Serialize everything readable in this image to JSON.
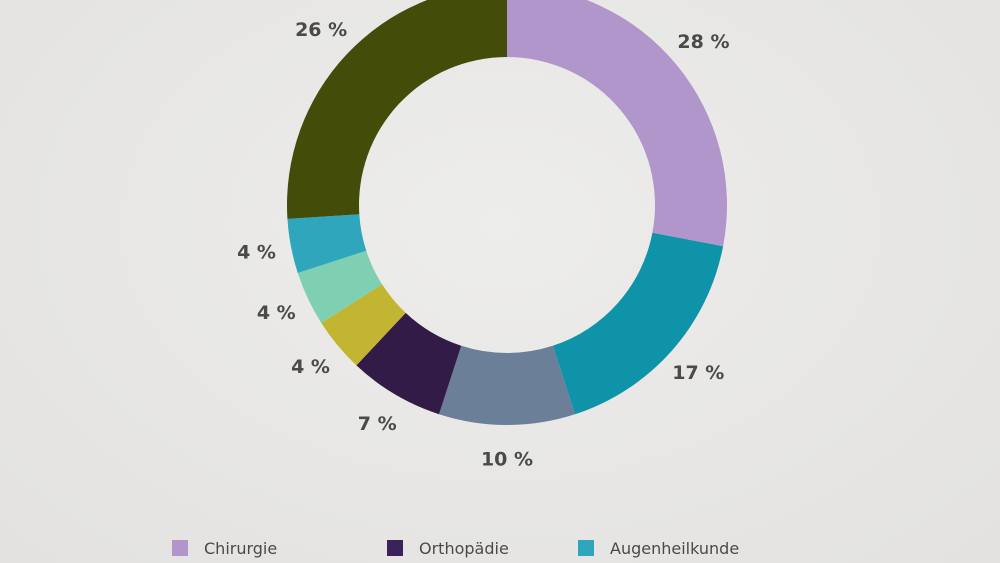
{
  "chart_data": {
    "type": "pie",
    "variant": "donut",
    "slices": [
      {
        "label": "28 %",
        "value": 28,
        "color": "#b196cb"
      },
      {
        "label": "17 %",
        "value": 17,
        "color": "#0e93a8"
      },
      {
        "label": "10 %",
        "value": 10,
        "color": "#6c7f98"
      },
      {
        "label": "7 %",
        "value": 7,
        "color": "#331b47"
      },
      {
        "label": "4 %",
        "value": 4,
        "color": "#c2b532"
      },
      {
        "label": "4 %",
        "value": 4,
        "color": "#7fd0b3"
      },
      {
        "label": "4 %",
        "value": 4,
        "color": "#30a6bd"
      },
      {
        "label": "26 %",
        "value": 26,
        "color": "#434c08"
      }
    ],
    "legend": [
      {
        "label": "Chirurgie",
        "color": "#b196cb"
      },
      {
        "label": "Orthopädie",
        "color": "#3a2358"
      },
      {
        "label": "Augenheilkunde",
        "color": "#30a6bd"
      }
    ],
    "legend_position": "bottom"
  }
}
